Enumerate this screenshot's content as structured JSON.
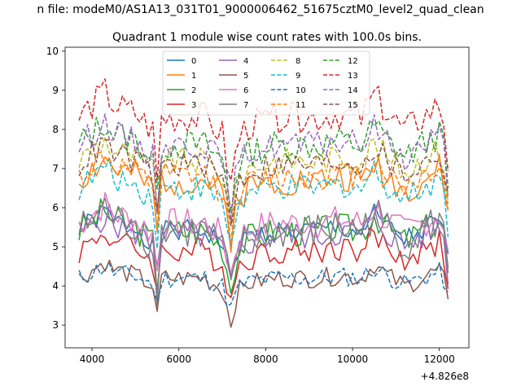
{
  "chart_data": {
    "type": "line",
    "suptitle": "n file: modeM0/AS1A13_031T01_9000006462_51675cztM0_level2_quad_clean",
    "title": "Quadrant 1 module wise count rates with 100.0s bins.",
    "xlabel": "",
    "ylabel": "",
    "x_offset_label": "+4.826e8",
    "xlim": [
      3380,
      12680
    ],
    "ylim": [
      2.42,
      10.1
    ],
    "xticks": [
      4000,
      6000,
      8000,
      10000,
      12000
    ],
    "xtick_labels": [
      "4000",
      "6000",
      "8000",
      "10000",
      "12000"
    ],
    "yticks": [
      3,
      4,
      5,
      6,
      7,
      8,
      9,
      10
    ],
    "ytick_labels": [
      "3",
      "4",
      "5",
      "6",
      "7",
      "8",
      "9",
      "10"
    ],
    "legend_position": "upper center",
    "anchors": [
      [
        3700,
        0.0
      ],
      [
        4300,
        0.6
      ],
      [
        4500,
        0.3
      ],
      [
        5000,
        0.1
      ],
      [
        5400,
        -0.3
      ],
      [
        5500,
        -1.5
      ],
      [
        5600,
        0.0
      ],
      [
        6600,
        0.0
      ],
      [
        7000,
        -0.4
      ],
      [
        7200,
        -1.6
      ],
      [
        7350,
        -0.5
      ],
      [
        7600,
        -0.2
      ],
      [
        8200,
        0.0
      ],
      [
        9200,
        0.0
      ],
      [
        9700,
        0.1
      ],
      [
        10200,
        0.0
      ],
      [
        10500,
        0.5
      ],
      [
        10800,
        0.1
      ],
      [
        11200,
        -0.3
      ],
      [
        11600,
        0.0
      ],
      [
        12000,
        0.3
      ],
      [
        12150,
        -0.3
      ],
      [
        12250,
        -1.8
      ]
    ],
    "series": [
      {
        "name": "0",
        "color": "#1f77b4",
        "dash": "solid",
        "base": 5.4,
        "scale": 0.8,
        "amp": 0.3,
        "seed": 1
      },
      {
        "name": "1",
        "color": "#ff7f0e",
        "dash": "solid",
        "base": 6.7,
        "scale": 0.9,
        "amp": 0.4,
        "seed": 2
      },
      {
        "name": "2",
        "color": "#2ca02c",
        "dash": "solid",
        "base": 5.4,
        "scale": 0.9,
        "amp": 0.4,
        "seed": 3
      },
      {
        "name": "3",
        "color": "#d62728",
        "dash": "solid",
        "base": 4.9,
        "scale": 0.8,
        "amp": 0.35,
        "seed": 4
      },
      {
        "name": "4",
        "color": "#9467bd",
        "dash": "solid",
        "base": 5.3,
        "scale": 0.9,
        "amp": 0.4,
        "seed": 5
      },
      {
        "name": "5",
        "color": "#8c564b",
        "dash": "solid",
        "base": 4.2,
        "scale": 0.7,
        "amp": 0.25,
        "seed": 6
      },
      {
        "name": "6",
        "color": "#e377c2",
        "dash": "solid",
        "base": 5.6,
        "scale": 0.8,
        "amp": 0.4,
        "seed": 7
      },
      {
        "name": "7",
        "color": "#7f7f7f",
        "dash": "solid",
        "base": 5.4,
        "scale": 1.0,
        "amp": 0.5,
        "seed": 8
      },
      {
        "name": "8",
        "color": "#bcbd22",
        "dash": "dashed",
        "base": 7.2,
        "scale": 0.9,
        "amp": 0.35,
        "seed": 9
      },
      {
        "name": "9",
        "color": "#17becf",
        "dash": "dashed",
        "base": 6.5,
        "scale": 0.9,
        "amp": 0.35,
        "seed": 10
      },
      {
        "name": "10",
        "color": "#1f77b4",
        "dash": "dashed",
        "base": 4.2,
        "scale": 0.5,
        "amp": 0.25,
        "seed": 11
      },
      {
        "name": "11",
        "color": "#ff7f0e",
        "dash": "dashed",
        "base": 6.8,
        "scale": 0.9,
        "amp": 0.35,
        "seed": 12
      },
      {
        "name": "12",
        "color": "#2ca02c",
        "dash": "dashed",
        "base": 7.6,
        "scale": 1.0,
        "amp": 0.4,
        "seed": 13
      },
      {
        "name": "13",
        "color": "#d62728",
        "dash": "dashed",
        "base": 8.3,
        "scale": 1.1,
        "amp": 0.4,
        "seed": 14
      },
      {
        "name": "14",
        "color": "#9467bd",
        "dash": "dashed",
        "base": 7.6,
        "scale": 1.0,
        "amp": 0.35,
        "seed": 15
      },
      {
        "name": "15",
        "color": "#8c564b",
        "dash": "dashed",
        "base": 7.1,
        "scale": 0.9,
        "amp": 0.35,
        "seed": 16
      }
    ]
  }
}
